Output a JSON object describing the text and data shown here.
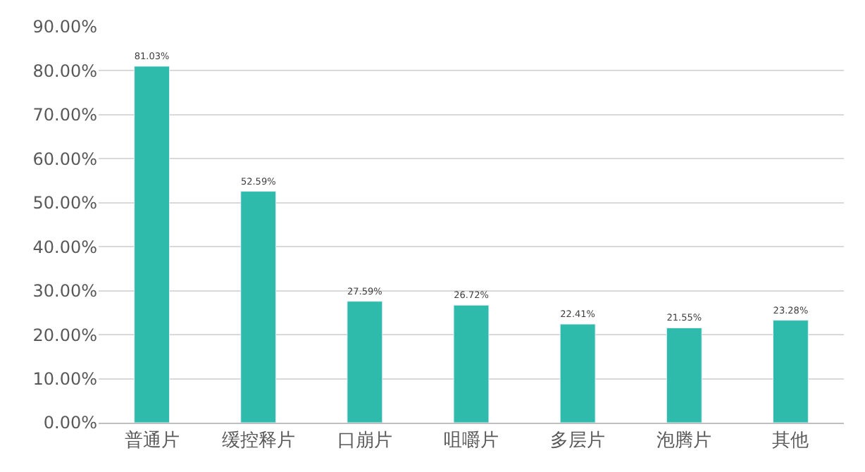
{
  "chart_data": {
    "type": "bar",
    "categories": [
      "普通片",
      "缓控释片",
      "口崩片",
      "咀嚼片",
      "多层片",
      "泡腾片",
      "其他"
    ],
    "values": [
      81.03,
      52.59,
      27.59,
      26.72,
      22.41,
      21.55,
      23.28
    ],
    "value_labels": [
      "81.03%",
      "52.59%",
      "27.59%",
      "26.72%",
      "22.41%",
      "21.55%",
      "23.28%"
    ],
    "color": "#2ebbab",
    "ylim": [
      0,
      90
    ],
    "yticks": [
      {
        "value": 0,
        "label": "0.00%"
      },
      {
        "value": 10,
        "label": "10.00%"
      },
      {
        "value": 20,
        "label": "20.00%"
      },
      {
        "value": 30,
        "label": "30.00%"
      },
      {
        "value": 40,
        "label": "40.00%"
      },
      {
        "value": 50,
        "label": "50.00%"
      },
      {
        "value": 60,
        "label": "60.00%"
      },
      {
        "value": 70,
        "label": "70.00%"
      },
      {
        "value": 80,
        "label": "80.00%"
      },
      {
        "value": 90,
        "label": "90.00%"
      }
    ],
    "grid": "y",
    "legend": false
  }
}
